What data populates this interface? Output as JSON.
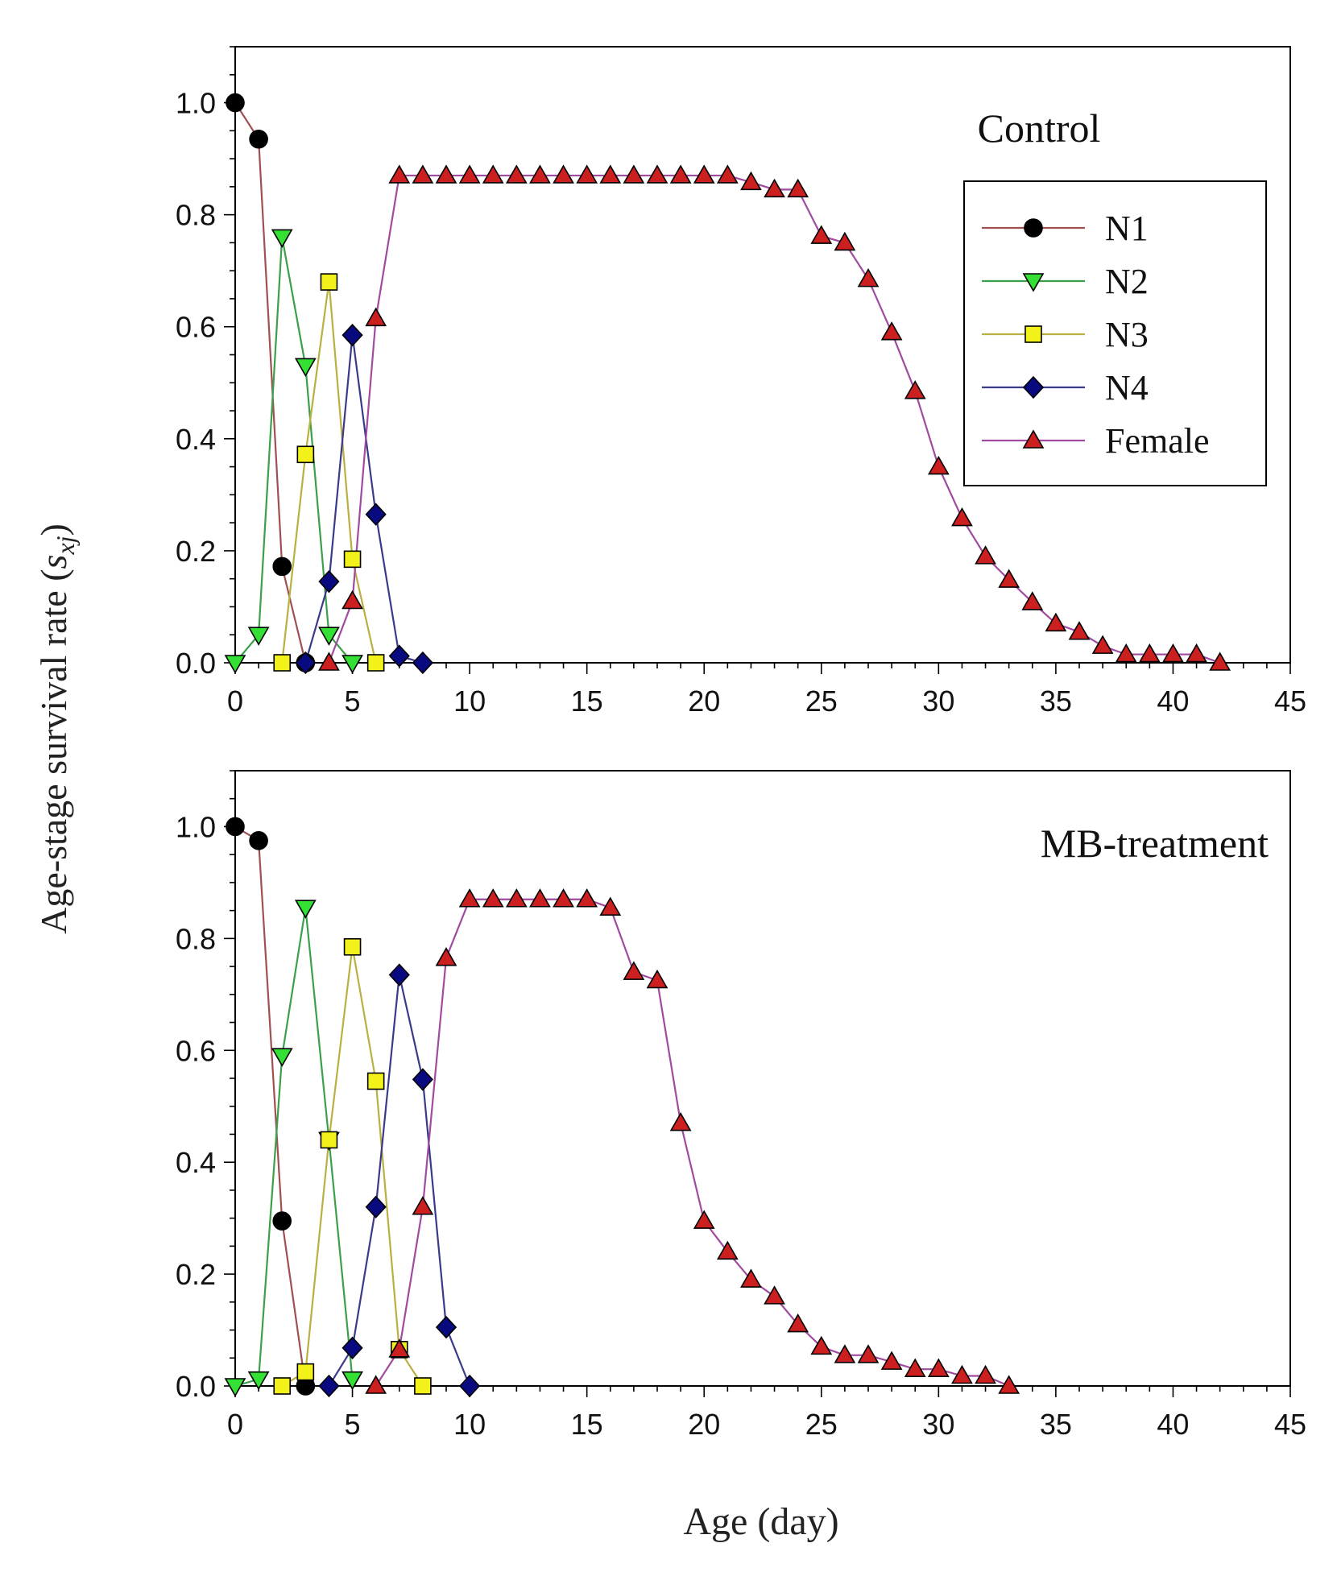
{
  "figure": {
    "ylabel_main": "Age-stage survival rate (",
    "ylabel_symbol": "s",
    "ylabel_subscript": "xj",
    "ylabel_close": ")",
    "xlabel": "Age (day)"
  },
  "colors": {
    "N1": "#000000",
    "N2": "#33e033",
    "N3": "#f2f21a",
    "N4": "#0a0a80",
    "Female": "#cc1f1f",
    "line_N1": "#a05050",
    "line_N2": "#3aa04a",
    "line_N3": "#b8b040",
    "line_N4": "#3a3a8a",
    "line_Female": "#a04aa0"
  },
  "chart_data": [
    {
      "type": "line",
      "title": "Control",
      "xlabel": "Age (day)",
      "ylabel": "Age-stage survival rate (s_xj)",
      "xlim": [
        0,
        45
      ],
      "ylim": [
        0,
        1.1
      ],
      "x_ticks": [
        "0",
        "5",
        "10",
        "15",
        "20",
        "25",
        "30",
        "35",
        "40",
        "45"
      ],
      "y_ticks": [
        "0.0",
        "0.2",
        "0.4",
        "0.6",
        "0.8",
        "1.0"
      ],
      "legend_position": "top-right",
      "grid": false,
      "series": [
        {
          "name": "N1",
          "marker": "circle",
          "x": [
            0,
            1,
            2,
            3
          ],
          "y": [
            1.0,
            0.935,
            0.172,
            0.0
          ]
        },
        {
          "name": "N2",
          "marker": "triangle-down",
          "x": [
            0,
            1,
            2,
            3,
            4,
            5
          ],
          "y": [
            0.0,
            0.05,
            0.76,
            0.53,
            0.05,
            0.0
          ]
        },
        {
          "name": "N3",
          "marker": "square",
          "x": [
            2,
            3,
            4,
            5,
            6
          ],
          "y": [
            0.0,
            0.372,
            0.68,
            0.185,
            0.0
          ]
        },
        {
          "name": "N4",
          "marker": "diamond",
          "x": [
            3,
            4,
            5,
            6,
            7,
            8
          ],
          "y": [
            0.0,
            0.145,
            0.585,
            0.265,
            0.012,
            0.0
          ]
        },
        {
          "name": "Female",
          "marker": "triangle-up",
          "x": [
            4,
            5,
            6,
            7,
            8,
            9,
            10,
            11,
            12,
            13,
            14,
            15,
            16,
            17,
            18,
            19,
            20,
            21,
            22,
            23,
            24,
            25,
            26,
            27,
            28,
            29,
            30,
            31,
            32,
            33,
            34,
            35,
            36,
            37,
            38,
            39,
            40,
            41,
            42
          ],
          "y": [
            0.0,
            0.11,
            0.615,
            0.87,
            0.87,
            0.87,
            0.87,
            0.87,
            0.87,
            0.87,
            0.87,
            0.87,
            0.87,
            0.87,
            0.87,
            0.87,
            0.87,
            0.87,
            0.858,
            0.845,
            0.845,
            0.762,
            0.75,
            0.685,
            0.59,
            0.485,
            0.35,
            0.258,
            0.19,
            0.148,
            0.108,
            0.07,
            0.055,
            0.03,
            0.015,
            0.015,
            0.015,
            0.015,
            0.0
          ]
        }
      ]
    },
    {
      "type": "line",
      "title": "MB-treatment",
      "xlabel": "Age (day)",
      "ylabel": "Age-stage survival rate (s_xj)",
      "xlim": [
        0,
        45
      ],
      "ylim": [
        0,
        1.1
      ],
      "x_ticks": [
        "0",
        "5",
        "10",
        "15",
        "20",
        "25",
        "30",
        "35",
        "40",
        "45"
      ],
      "y_ticks": [
        "0.0",
        "0.2",
        "0.4",
        "0.6",
        "0.8",
        "1.0"
      ],
      "grid": false,
      "series": [
        {
          "name": "N1",
          "marker": "circle",
          "x": [
            0,
            1,
            2,
            3
          ],
          "y": [
            1.0,
            0.975,
            0.295,
            0.0
          ]
        },
        {
          "name": "N2",
          "marker": "triangle-down",
          "x": [
            0,
            1,
            2,
            3,
            4,
            5
          ],
          "y": [
            0.0,
            0.012,
            0.59,
            0.855,
            0.44,
            0.012
          ]
        },
        {
          "name": "N3",
          "marker": "square",
          "x": [
            2,
            3,
            4,
            5,
            6,
            7,
            8
          ],
          "y": [
            0.0,
            0.025,
            0.44,
            0.785,
            0.545,
            0.065,
            0.0
          ]
        },
        {
          "name": "N4",
          "marker": "diamond",
          "x": [
            4,
            5,
            6,
            7,
            8,
            9,
            10
          ],
          "y": [
            0.0,
            0.068,
            0.32,
            0.735,
            0.548,
            0.105,
            0.0
          ]
        },
        {
          "name": "Female",
          "marker": "triangle-up",
          "x": [
            6,
            7,
            8,
            9,
            10,
            11,
            12,
            13,
            14,
            15,
            16,
            17,
            18,
            19,
            20,
            21,
            22,
            23,
            24,
            25,
            26,
            27,
            28,
            29,
            30,
            31,
            32,
            33
          ],
          "y": [
            0.0,
            0.065,
            0.32,
            0.765,
            0.87,
            0.87,
            0.87,
            0.87,
            0.87,
            0.87,
            0.855,
            0.74,
            0.725,
            0.47,
            0.295,
            0.24,
            0.19,
            0.16,
            0.11,
            0.07,
            0.055,
            0.055,
            0.043,
            0.03,
            0.03,
            0.018,
            0.018,
            0.0
          ]
        }
      ]
    }
  ]
}
